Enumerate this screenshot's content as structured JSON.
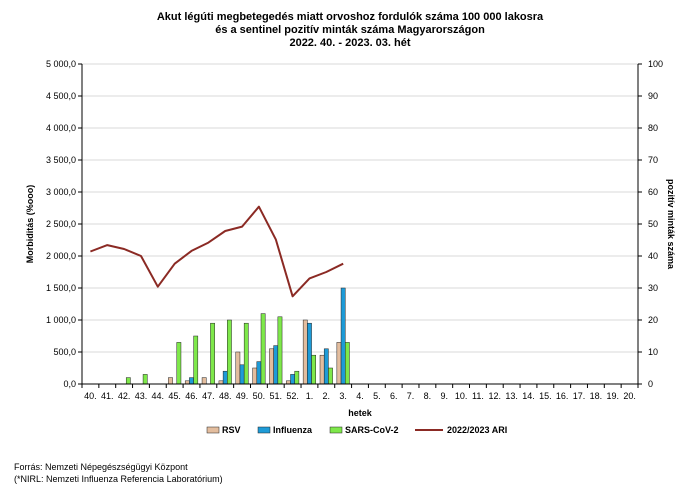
{
  "chart_data": {
    "type": "bar",
    "title": [
      "Akut légúti megbetegedés miatt orvoshoz fordulók száma 100 000 lakosra",
      "és a sentinel pozitív minták száma Magyarországon",
      "2022. 40. - 2023. 03. hét"
    ],
    "xlabel": "hetek",
    "ylabel_left": "Morbiditás (%ooo)",
    "ylabel_right": "pozitív minták száma",
    "ylim_left": [
      0,
      5000
    ],
    "ylim_right": [
      0,
      100
    ],
    "left_ticks": [
      "0,0",
      "500,0",
      "1 000,0",
      "1 500,0",
      "2 000,0",
      "2 500,0",
      "3 000,0",
      "3 500,0",
      "4 000,0",
      "4 500,0",
      "5 000,0"
    ],
    "right_ticks": [
      "0",
      "10",
      "20",
      "30",
      "40",
      "50",
      "60",
      "70",
      "80",
      "90",
      "100"
    ],
    "categories": [
      "40.",
      "41.",
      "42.",
      "43.",
      "44.",
      "45.",
      "46.",
      "47.",
      "48.",
      "49.",
      "50.",
      "51.",
      "52.",
      "1.",
      "2.",
      "3.",
      "4.",
      "5.",
      "6.",
      "7.",
      "8.",
      "9.",
      "10.",
      "11.",
      "12.",
      "13.",
      "14.",
      "15.",
      "16.",
      "17.",
      "18.",
      "19.",
      "20."
    ],
    "bar_series": [
      {
        "name": "RSV",
        "color": "#e3bd9e",
        "axis": "right",
        "values": [
          0,
          0,
          0,
          0,
          0,
          2,
          1,
          2,
          1,
          10,
          5,
          11,
          1,
          20,
          9,
          13,
          null,
          null,
          null,
          null,
          null,
          null,
          null,
          null,
          null,
          null,
          null,
          null,
          null,
          null,
          null,
          null,
          null
        ]
      },
      {
        "name": "Influenza",
        "color": "#1e9bd7",
        "axis": "right",
        "values": [
          0,
          0,
          0,
          0,
          0,
          0,
          2,
          0,
          4,
          6,
          7,
          12,
          3,
          19,
          11,
          30,
          null,
          null,
          null,
          null,
          null,
          null,
          null,
          null,
          null,
          null,
          null,
          null,
          null,
          null,
          null,
          null,
          null
        ]
      },
      {
        "name": "SARS-CoV-2",
        "color": "#7ee84a",
        "axis": "right",
        "values": [
          0,
          0,
          2,
          3,
          0,
          13,
          15,
          19,
          20,
          19,
          22,
          21,
          4,
          9,
          5,
          13,
          null,
          null,
          null,
          null,
          null,
          null,
          null,
          null,
          null,
          null,
          null,
          null,
          null,
          null,
          null,
          null,
          null
        ]
      }
    ],
    "line_series": [
      {
        "name": "2022/2023 ARI",
        "color": "#8b2a24",
        "axis": "left",
        "values": [
          2070,
          2170,
          2110,
          2000,
          1520,
          1880,
          2080,
          2210,
          2390,
          2460,
          2770,
          2260,
          1370,
          1650,
          1750,
          1880,
          null,
          null,
          null,
          null,
          null,
          null,
          null,
          null,
          null,
          null,
          null,
          null,
          null,
          null,
          null,
          null,
          null
        ]
      }
    ],
    "grid": true,
    "legend": "bottom"
  },
  "footer": {
    "source": "Forrás: Nemzeti Népegészségügyi Központ",
    "note": "(*NIRL: Nemzeti Influenza Referencia Laboratórium)"
  }
}
